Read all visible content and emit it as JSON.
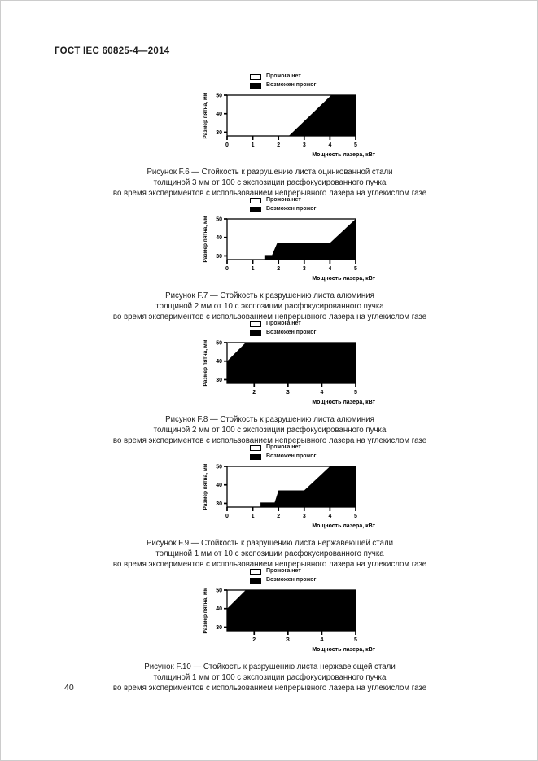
{
  "page": {
    "header_title": "ГОСТ IEC 60825-4—2014",
    "page_number": "40"
  },
  "charts": [
    {
      "id": "F.6",
      "caption_lines": [
        "Рисунок F.6 — Стойкость к разрушению листа оцинкованной стали",
        "толщиной 3 мм от 100 с экспозиции расфокусированного пучка",
        "во время экспериментов с использованием непрерывного лазера на углекислом газе"
      ],
      "chart_data": {
        "type": "area",
        "xlabel": "Мощность лазера, кВт",
        "ylabel": "Размер пятна, мм",
        "xlim": [
          0,
          5
        ],
        "ylim": [
          28,
          50
        ],
        "x_ticks": [
          0,
          1,
          2,
          3,
          4,
          5
        ],
        "y_ticks": [
          30,
          40,
          50
        ],
        "legend": [
          {
            "label": "Прожога нет",
            "fill": "#ffffff"
          },
          {
            "label": "Возможен прожог",
            "fill": "#000000"
          }
        ],
        "legend_position": "top",
        "burnthrough_region_polygon": [
          [
            2.4,
            28
          ],
          [
            4.05,
            50
          ],
          [
            5,
            50
          ],
          [
            5,
            28
          ]
        ]
      }
    },
    {
      "id": "F.7",
      "caption_lines": [
        "Рисунок F.7 — Стойкость к разрушению листа алюминия",
        "толщиной 2 мм от 10 с экспозиции расфокусированного пучка",
        "во время экспериментов с использованием непрерывного лазера на углекислом газе"
      ],
      "chart_data": {
        "type": "area",
        "xlabel": "Мощность лазера, кВт",
        "ylabel": "Размер пятна, мм",
        "xlim": [
          0,
          5
        ],
        "ylim": [
          28,
          50
        ],
        "x_ticks": [
          0,
          1,
          2,
          3,
          4,
          5
        ],
        "y_ticks": [
          30,
          40,
          50
        ],
        "legend": [
          {
            "label": "Прожога нет",
            "fill": "#ffffff"
          },
          {
            "label": "Возможен прожог",
            "fill": "#000000"
          }
        ],
        "legend_position": "top",
        "burnthrough_region_polygon": [
          [
            1.45,
            28
          ],
          [
            1.45,
            30.5
          ],
          [
            1.75,
            30.5
          ],
          [
            1.95,
            37
          ],
          [
            4.0,
            37
          ],
          [
            5,
            50
          ],
          [
            5,
            28
          ]
        ]
      }
    },
    {
      "id": "F.8",
      "caption_lines": [
        "Рисунок F.8 — Стойкость к разрушению листа алюминия",
        "толщиной 2 мм от 100 с экспозиции расфокусированного пучка",
        "во время экспериментов с использованием непрерывного лазера на углекислом газе"
      ],
      "chart_data": {
        "type": "area",
        "xlabel": "Мощность лазера, кВт",
        "ylabel": "Размер пятна, мм",
        "xlim": [
          1.2,
          5
        ],
        "ylim": [
          28,
          50
        ],
        "x_ticks": [
          2,
          3,
          4,
          5
        ],
        "y_ticks": [
          30,
          40,
          50
        ],
        "legend": [
          {
            "label": "Прожога нет",
            "fill": "#ffffff"
          },
          {
            "label": "Возможен прожог",
            "fill": "#000000"
          }
        ],
        "legend_position": "top",
        "burnthrough_region_polygon": [
          [
            1.2,
            28
          ],
          [
            1.2,
            40
          ],
          [
            1.75,
            50
          ],
          [
            5,
            50
          ],
          [
            5,
            28
          ]
        ]
      }
    },
    {
      "id": "F.9",
      "caption_lines": [
        "Рисунок F.9 — Стойкость к разрушению листа нержавеющей стали",
        "толщиной 1 мм от 10 с экспозиции расфокусированного пучка",
        "во время экспериментов с использованием непрерывного лазера на углекислом газе"
      ],
      "chart_data": {
        "type": "area",
        "xlabel": "Мощность лазера, кВт",
        "ylabel": "Размер пятна, мм",
        "xlim": [
          0,
          5
        ],
        "ylim": [
          28,
          50
        ],
        "x_ticks": [
          0,
          1,
          2,
          3,
          4,
          5
        ],
        "y_ticks": [
          30,
          40,
          50
        ],
        "legend": [
          {
            "label": "Прожога нет",
            "fill": "#ffffff"
          },
          {
            "label": "Возможен прожог",
            "fill": "#000000"
          }
        ],
        "legend_position": "top",
        "burnthrough_region_polygon": [
          [
            1.3,
            28
          ],
          [
            1.3,
            30.5
          ],
          [
            1.85,
            30.5
          ],
          [
            2.0,
            37
          ],
          [
            3.0,
            37
          ],
          [
            4.0,
            50
          ],
          [
            5,
            50
          ],
          [
            5,
            28
          ]
        ]
      }
    },
    {
      "id": "F.10",
      "caption_lines": [
        "Рисунок F.10 — Стойкость к разрушению листа нержавеющей стали",
        "толщиной 1 мм от 100 с экспозиции расфокусированного пучка",
        "во время экспериментов с использованием непрерывного лазера на углекислом газе"
      ],
      "chart_data": {
        "type": "area",
        "xlabel": "Мощность лазера, кВт",
        "ylabel": "Размер пятна, мм",
        "xlim": [
          1.2,
          5
        ],
        "ylim": [
          28,
          50
        ],
        "x_ticks": [
          2,
          3,
          4,
          5
        ],
        "y_ticks": [
          30,
          40,
          50
        ],
        "legend": [
          {
            "label": "Прожога нет",
            "fill": "#ffffff"
          },
          {
            "label": "Возможен прожог",
            "fill": "#000000"
          }
        ],
        "legend_position": "top",
        "burnthrough_region_polygon": [
          [
            1.2,
            28
          ],
          [
            1.2,
            40
          ],
          [
            1.75,
            50
          ],
          [
            5,
            50
          ],
          [
            5,
            28
          ]
        ]
      }
    }
  ]
}
